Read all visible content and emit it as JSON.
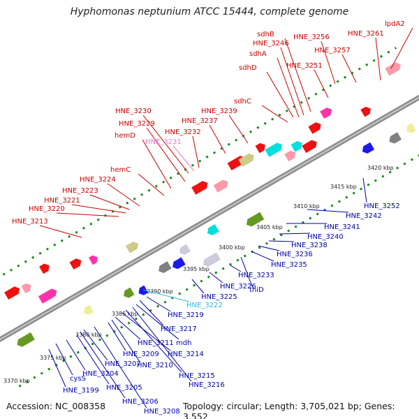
{
  "title": "Hyphomonas neptunium ATCC 15444, complete genome",
  "footer": {
    "accession": "Accession: NC_008358",
    "summary": "Topology: circular; Length: 3,705,021 bp; Genes: 3,552"
  },
  "colors": {
    "forward_label": "#cc0000",
    "reverse_label": "#0000aa",
    "highlight_label_pink": "#ee77cc",
    "highlight_label_cyan": "#22bbdd",
    "backbone": "#8c8c8c",
    "dots": "#1a8a1a"
  },
  "scale_ticks": [
    "3370 kbp",
    "3375 kbp",
    "3380 kbp",
    "3385 kbp",
    "3390 kbp",
    "3395 kbp",
    "3400 kbp",
    "3405 kbp",
    "3410 kbp",
    "3415 kbp",
    "3420 kbp"
  ],
  "forward_labels": [
    "HNE_3213",
    "HNE_3220",
    "HNE_3221",
    "HNE_3223",
    "HNE_3224",
    "hemC",
    "hemD",
    "HNE_3229",
    "HNE_3230",
    "HNE_3231",
    "HNE_3232",
    "HNE_3237",
    "HNE_3239",
    "sdhC",
    "sdhD",
    "sdhA",
    "HNE_3246",
    "sdhB",
    "HNE_3251",
    "HNE_3256",
    "HNE_3257",
    "HNE_3261",
    "lpdA2"
  ],
  "reverse_labels": [
    "HNE_3199",
    "cysS",
    "HNE_3204",
    "HNE_3205",
    "HNE_3206",
    "HNE_3207",
    "HNE_3208",
    "HNE_3209",
    "HNE_3210",
    "HNE_3211",
    "HNE_3214",
    "HNE_3215",
    "HNE_3216",
    "mdh",
    "HNE_3217",
    "HNE_3219",
    "HNE_3222",
    "HNE_3225",
    "HNE_3226",
    "HNE_3233",
    "thiD",
    "HNE_3235",
    "HNE_3236",
    "HNE_3238",
    "HNE_3240",
    "HNE_3241",
    "HNE_3242",
    "HNE_3252"
  ]
}
